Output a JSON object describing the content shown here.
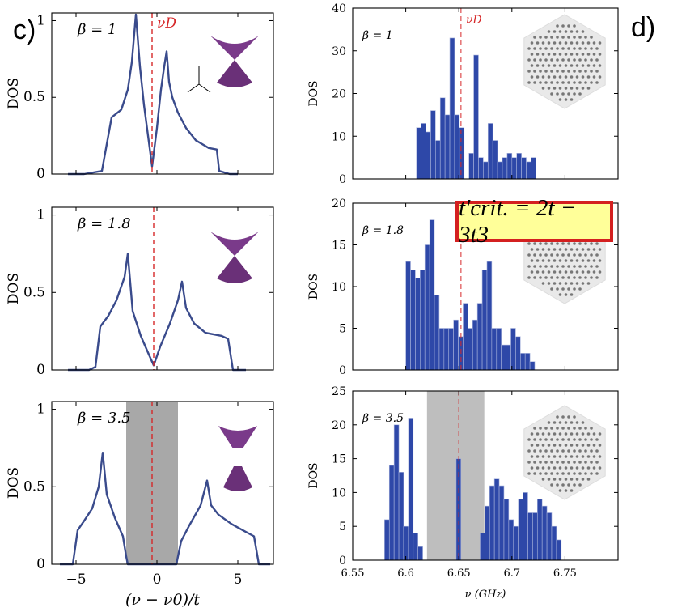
{
  "panel_labels": {
    "left": "c)",
    "right": "d)"
  },
  "formula": "t'crit. = 2t − 3t3",
  "colors": {
    "curve": "#3a4b8c",
    "bar": "#2e48a8",
    "bar_edge": "#aab5dd",
    "dirac_line": "#d62728",
    "gap": "#a8a8a8",
    "formula_border": "#d42020",
    "formula_fill": "#ffff99"
  },
  "chart_data": [
    {
      "type": "line",
      "panel": "c1",
      "title": "",
      "annotation": "β = 1",
      "marker_label": "νD",
      "xlabel": "",
      "ylabel": "DOS",
      "xlim": [
        -6.5,
        7.2
      ],
      "ylim": [
        0,
        1.05
      ],
      "yticks": [
        0,
        0.5,
        1
      ],
      "ytick_labels": [
        "0",
        "0.5",
        "1"
      ],
      "xticks": [
        -5,
        0,
        5
      ],
      "xtick_labels": [
        "",
        "",
        ""
      ],
      "dirac_x": -0.3,
      "x": [
        -5.5,
        -4.5,
        -3.4,
        -2.8,
        -2.2,
        -1.8,
        -1.55,
        -1.3,
        -1.05,
        -0.8,
        -0.55,
        -0.3,
        0.0,
        0.25,
        0.45,
        0.6,
        0.75,
        0.95,
        1.3,
        1.8,
        2.4,
        3.2,
        3.7,
        3.85,
        4.5,
        5.0
      ],
      "y": [
        0,
        0,
        0.02,
        0.37,
        0.42,
        0.55,
        0.73,
        1.04,
        0.7,
        0.45,
        0.25,
        0.05,
        0.3,
        0.55,
        0.7,
        0.8,
        0.6,
        0.5,
        0.4,
        0.3,
        0.22,
        0.17,
        0.16,
        0.02,
        0,
        0
      ],
      "inset": "cone-touching"
    },
    {
      "type": "line",
      "panel": "c2",
      "title": "",
      "annotation": "β = 1.8",
      "marker_label": "",
      "xlabel": "",
      "ylabel": "DOS",
      "xlim": [
        -6.5,
        7.2
      ],
      "ylim": [
        0,
        1.05
      ],
      "yticks": [
        0,
        0.5,
        1
      ],
      "ytick_labels": [
        "0",
        "0.5",
        "1"
      ],
      "xticks": [
        -5,
        0,
        5
      ],
      "xtick_labels": [
        "",
        "",
        ""
      ],
      "dirac_x": -0.2,
      "x": [
        -5.5,
        -4.2,
        -3.8,
        -3.5,
        -3.0,
        -2.5,
        -2.0,
        -1.8,
        -1.5,
        -1.0,
        -0.5,
        -0.2,
        0.2,
        0.8,
        1.3,
        1.55,
        1.8,
        2.3,
        3.0,
        4.0,
        4.4,
        4.7,
        5.5
      ],
      "y": [
        0,
        0,
        0.02,
        0.28,
        0.35,
        0.45,
        0.6,
        0.75,
        0.38,
        0.22,
        0.1,
        0.03,
        0.15,
        0.3,
        0.45,
        0.57,
        0.4,
        0.3,
        0.24,
        0.22,
        0.2,
        0,
        0
      ],
      "inset": "cone-touching"
    },
    {
      "type": "line",
      "panel": "c3",
      "title": "",
      "annotation": "β = 3.5",
      "marker_label": "",
      "xlabel": "(ν − ν0)/t",
      "ylabel": "DOS",
      "xlim": [
        -6.5,
        7.2
      ],
      "ylim": [
        0,
        1.05
      ],
      "yticks": [
        0,
        0.5,
        1
      ],
      "ytick_labels": [
        "0",
        "0.5",
        "1"
      ],
      "xticks": [
        -5,
        0,
        5
      ],
      "xtick_labels": [
        "−5",
        "0",
        "5"
      ],
      "dirac_x": -0.3,
      "gap": [
        -1.9,
        1.3
      ],
      "x": [
        -6.0,
        -5.2,
        -4.9,
        -4.5,
        -4.0,
        -3.6,
        -3.35,
        -3.1,
        -2.6,
        -2.1,
        -1.9,
        -1.8,
        1.2,
        1.3,
        1.5,
        2.0,
        2.7,
        3.1,
        3.35,
        3.8,
        4.6,
        5.3,
        6.0,
        6.3,
        7.0
      ],
      "y": [
        0,
        0,
        0.22,
        0.28,
        0.36,
        0.5,
        0.72,
        0.45,
        0.3,
        0.18,
        0.05,
        0,
        0,
        0.05,
        0.15,
        0.25,
        0.38,
        0.54,
        0.38,
        0.32,
        0.26,
        0.22,
        0.18,
        0,
        0
      ],
      "inset": "cones-separated"
    },
    {
      "type": "bar",
      "panel": "d1",
      "annotation": "β = 1",
      "marker_label": "νD",
      "xlabel": "",
      "ylabel": "DOS",
      "xlim": [
        6.55,
        6.8
      ],
      "ylim": [
        0,
        40
      ],
      "yticks": [
        0,
        10,
        20,
        30,
        40
      ],
      "ytick_labels": [
        "0",
        "10",
        "20",
        "30",
        "40"
      ],
      "xticks": [
        6.55,
        6.6,
        6.65,
        6.7,
        6.75
      ],
      "xtick_labels": [
        "",
        "",
        "",
        "",
        ""
      ],
      "dirac_x": 6.652,
      "bin_start": 6.61,
      "bin_width": 0.0045,
      "values": [
        12,
        13,
        11,
        16,
        9,
        19,
        15,
        33,
        15,
        12,
        0,
        6,
        29,
        5,
        4,
        13,
        9,
        4,
        5,
        6,
        5,
        6,
        5,
        4,
        5
      ],
      "inset": "hexagonal-lattice"
    },
    {
      "type": "bar",
      "panel": "d2",
      "annotation": "β = 1.8",
      "marker_label": "",
      "xlabel": "",
      "ylabel": "DOS",
      "xlim": [
        6.55,
        6.8
      ],
      "ylim": [
        0,
        20
      ],
      "yticks": [
        0,
        5,
        10,
        15,
        20
      ],
      "ytick_labels": [
        "0",
        "5",
        "10",
        "15",
        "20"
      ],
      "xticks": [
        6.55,
        6.6,
        6.65,
        6.7,
        6.75
      ],
      "xtick_labels": [
        "",
        "",
        "",
        "",
        ""
      ],
      "dirac_x": 6.652,
      "bin_start": 6.6,
      "bin_width": 0.0045,
      "values": [
        13,
        12,
        11,
        12,
        15,
        18,
        9,
        5,
        5,
        5,
        6,
        4,
        8,
        5,
        6,
        8,
        12,
        13,
        5,
        5,
        3,
        3,
        5,
        4,
        2,
        2,
        1
      ],
      "inset": "hexagonal-lattice"
    },
    {
      "type": "bar",
      "panel": "d3",
      "annotation": "β = 3.5",
      "marker_label": "",
      "xlabel": "ν (GHz)",
      "ylabel": "DOS",
      "xlim": [
        6.55,
        6.8
      ],
      "ylim": [
        0,
        25
      ],
      "yticks": [
        0,
        5,
        10,
        15,
        20,
        25
      ],
      "ytick_labels": [
        "0",
        "5",
        "10",
        "15",
        "20",
        "25"
      ],
      "xticks": [
        6.55,
        6.6,
        6.65,
        6.7,
        6.75
      ],
      "xtick_labels": [
        "6.55",
        "6.6",
        "6.65",
        "6.7",
        "6.75"
      ],
      "dirac_x": 6.65,
      "gap": [
        6.62,
        6.674
      ],
      "bin_start": 6.58,
      "bin_width": 0.0045,
      "values": [
        6,
        14,
        20,
        13,
        5,
        21,
        4,
        2,
        0,
        0,
        0,
        0,
        0,
        0,
        0,
        15,
        0,
        0,
        0,
        0,
        4,
        8,
        11,
        12,
        11,
        9,
        6,
        5,
        9,
        10,
        7,
        7,
        9,
        8,
        7,
        5,
        3
      ],
      "inset": "hexagonal-lattice"
    }
  ]
}
